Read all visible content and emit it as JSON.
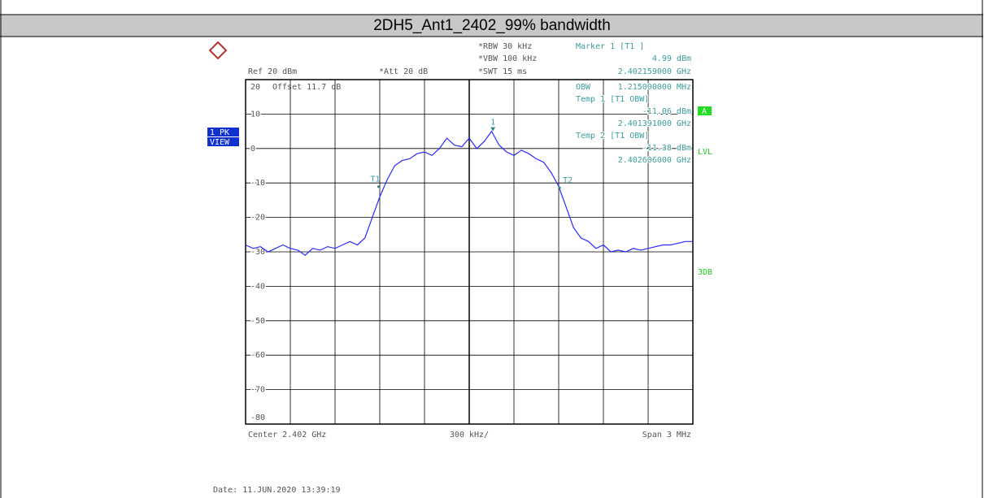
{
  "title": "2DH5_Ant1_2402_99% bandwidth",
  "chart_data": {
    "type": "line",
    "color": "#2a2aff",
    "ylim": [
      -80,
      20
    ],
    "yticks": [
      20,
      10,
      0,
      -10,
      -20,
      -30,
      -40,
      -50,
      -60,
      -70,
      -80
    ],
    "xlim": [
      2.4005,
      2.4035
    ],
    "grid": true,
    "grid_divisions": 10,
    "x": [
      2.4005,
      2.40055,
      2.4006,
      2.40065,
      2.4007,
      2.40075,
      2.4008,
      2.40085,
      2.4009,
      2.40095,
      2.401,
      2.40105,
      2.4011,
      2.40115,
      2.4012,
      2.40125,
      2.4013,
      2.40135,
      2.4014,
      2.40145,
      2.4015,
      2.40155,
      2.4016,
      2.40165,
      2.4017,
      2.40175,
      2.4018,
      2.40185,
      2.4019,
      2.40195,
      2.402,
      2.40205,
      2.4021,
      2.40215,
      2.4022,
      2.40225,
      2.4023,
      2.40235,
      2.4024,
      2.40245,
      2.4025,
      2.40255,
      2.4026,
      2.40265,
      2.4027,
      2.40275,
      2.4028,
      2.40285,
      2.4029,
      2.40295,
      2.403,
      2.40305,
      2.4031,
      2.40315,
      2.4032,
      2.40325,
      2.4033,
      2.40335,
      2.4034,
      2.40345,
      2.4035
    ],
    "series": [
      {
        "name": "1 PK VIEW",
        "values": [
          -28,
          -29,
          -28.5,
          -30,
          -29,
          -28,
          -29,
          -29.5,
          -31,
          -29,
          -29.5,
          -28.5,
          -29,
          -28,
          -27,
          -28,
          -26,
          -20,
          -14,
          -9,
          -5,
          -3.5,
          -3,
          -1.5,
          -1,
          -2,
          0,
          3,
          1,
          0.5,
          3,
          0,
          2,
          5,
          1,
          -1,
          -2,
          -0.5,
          -1.5,
          -3,
          -4,
          -7,
          -11,
          -17,
          -23,
          -26,
          -27,
          -29,
          -28,
          -30,
          -29.5,
          -30,
          -29,
          -29.5,
          -29,
          -28.5,
          -28,
          -28,
          -27.5,
          -27,
          -27
        ]
      }
    ],
    "markers": [
      {
        "label": "1",
        "x": 2.402159,
        "y": 4.99
      },
      {
        "label": "T1",
        "x": 2.401391,
        "y": -11.06
      },
      {
        "label": "T2",
        "x": 2.402606,
        "y": -11.38
      }
    ],
    "settings": {
      "rbw": "*RBW 30 kHz",
      "vbw": "*VBW 100 kHz",
      "swt": "*SWT 15 ms",
      "ref": "Ref 20 dBm",
      "att": "*Att 20 dB",
      "offset": "Offset 11.7 dB"
    },
    "readout": [
      "Marker 1 [T1 ]",
      "4.99 dBm",
      "2.402159000 GHz",
      "OBW",
      "1.215000000 MHz",
      "Temp 1 [T1 OBW]",
      "-11.06 dBm",
      "2.401391000 GHz",
      "Temp 2 [T1 OBW]",
      "-11.38 dBm",
      "2.402606000 GHz"
    ],
    "badges": {
      "trace": "1 PK",
      "view": "VIEW",
      "a": "A",
      "lvl": "LVL",
      "db3": "3DB"
    },
    "footer": {
      "center": "Center 2.402 GHz",
      "div": "300 kHz/",
      "span": "Span 3 MHz"
    },
    "date": "Date: 11.JUN.2020 13:39:19"
  }
}
